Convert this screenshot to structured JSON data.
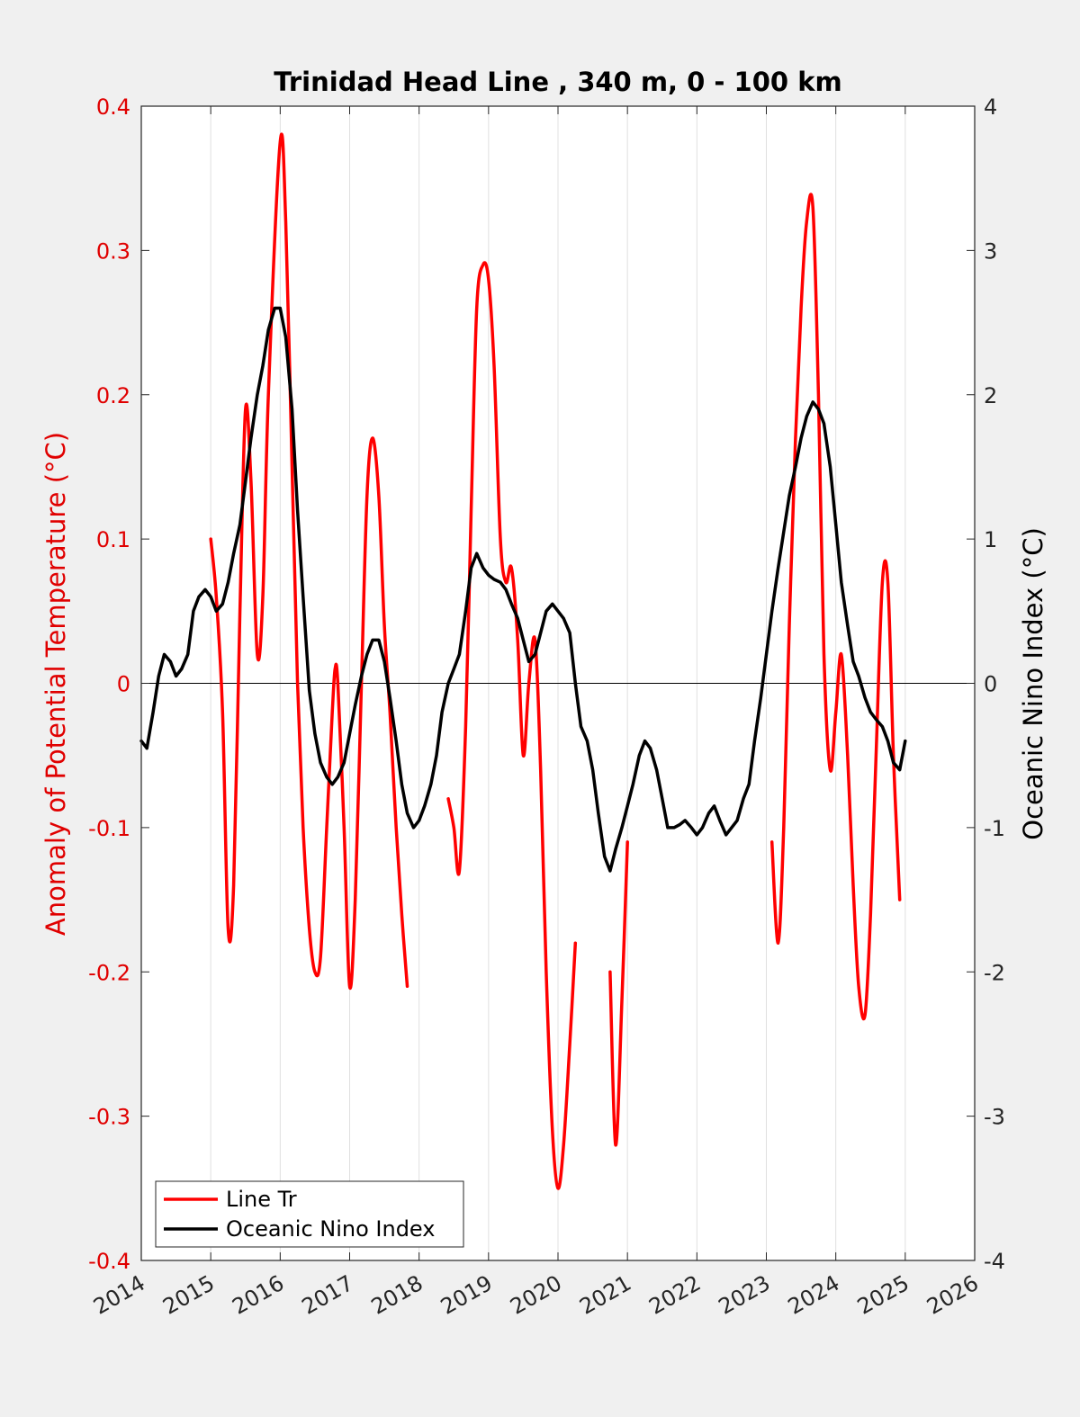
{
  "chart_data": {
    "type": "line",
    "title": "Trinidad Head Line , 340 m, 0 - 100 km",
    "ylabel_left": "Anomaly of Potential Temperature (°C)",
    "ylabel_right": "Oceanic Nino Index (°C)",
    "xlabel": "",
    "xlim": [
      2014,
      2026
    ],
    "ylim_left": [
      -0.4,
      0.4
    ],
    "ylim_right": [
      -4,
      4
    ],
    "xticks": [
      "2014",
      "2015",
      "2016",
      "2017",
      "2018",
      "2019",
      "2020",
      "2021",
      "2022",
      "2023",
      "2024",
      "2025",
      "2026"
    ],
    "yticks_left": [
      "-0.4",
      "-0.3",
      "-0.2",
      "-0.1",
      "0",
      "0.1",
      "0.2",
      "0.3",
      "0.4"
    ],
    "yticks_right": [
      "-4",
      "-3",
      "-2",
      "-1",
      "0",
      "1",
      "2",
      "3",
      "4"
    ],
    "grid": "vertical",
    "zero_line": true,
    "legend_position": "bottom-left",
    "colors": {
      "left_axis": "#e00000",
      "line_tr": "#ff0000",
      "oni": "#000000",
      "grid": "#e0e0e0",
      "background": "#f0f0f0",
      "plot_background": "#ffffff"
    },
    "series": [
      {
        "name": "Line Tr",
        "axis": "left",
        "segments": [
          [
            [
              2015.0,
              0.1
            ],
            [
              2015.08,
              0.06
            ],
            [
              2015.17,
              -0.02
            ],
            [
              2015.25,
              -0.17
            ],
            [
              2015.33,
              -0.14
            ],
            [
              2015.42,
              0.05
            ],
            [
              2015.5,
              0.19
            ],
            [
              2015.58,
              0.14
            ],
            [
              2015.67,
              0.02
            ],
            [
              2015.75,
              0.06
            ],
            [
              2015.83,
              0.2
            ],
            [
              2016.0,
              0.375
            ],
            [
              2016.08,
              0.32
            ],
            [
              2016.17,
              0.15
            ],
            [
              2016.25,
              0.0
            ],
            [
              2016.33,
              -0.1
            ],
            [
              2016.42,
              -0.17
            ],
            [
              2016.5,
              -0.2
            ],
            [
              2016.58,
              -0.19
            ],
            [
              2016.67,
              -0.1
            ],
            [
              2016.75,
              -0.02
            ],
            [
              2016.79,
              0.01
            ],
            [
              2016.83,
              0.0
            ],
            [
              2016.92,
              -0.1
            ],
            [
              2017.0,
              -0.21
            ],
            [
              2017.08,
              -0.15
            ],
            [
              2017.17,
              0.0
            ],
            [
              2017.25,
              0.13
            ],
            [
              2017.33,
              0.17
            ],
            [
              2017.42,
              0.13
            ],
            [
              2017.5,
              0.04
            ],
            [
              2017.58,
              -0.02
            ],
            [
              2017.67,
              -0.1
            ],
            [
              2017.75,
              -0.16
            ],
            [
              2017.83,
              -0.21
            ]
          ],
          [
            [
              2018.42,
              -0.08
            ],
            [
              2018.5,
              -0.1
            ],
            [
              2018.58,
              -0.13
            ],
            [
              2018.67,
              -0.03
            ],
            [
              2018.75,
              0.12
            ],
            [
              2018.83,
              0.26
            ],
            [
              2018.92,
              0.29
            ],
            [
              2019.0,
              0.28
            ],
            [
              2019.08,
              0.22
            ],
            [
              2019.17,
              0.1
            ],
            [
              2019.25,
              0.07
            ],
            [
              2019.33,
              0.08
            ],
            [
              2019.42,
              0.03
            ],
            [
              2019.5,
              -0.05
            ],
            [
              2019.58,
              0.0
            ],
            [
              2019.67,
              0.03
            ],
            [
              2019.75,
              -0.06
            ],
            [
              2019.83,
              -0.2
            ],
            [
              2019.92,
              -0.31
            ],
            [
              2020.0,
              -0.35
            ],
            [
              2020.08,
              -0.32
            ],
            [
              2020.17,
              -0.25
            ],
            [
              2020.25,
              -0.18
            ]
          ],
          [
            [
              2020.75,
              -0.2
            ],
            [
              2020.83,
              -0.32
            ],
            [
              2020.92,
              -0.22
            ],
            [
              2021.0,
              -0.11
            ]
          ],
          [
            [
              2023.08,
              -0.11
            ],
            [
              2023.17,
              -0.18
            ],
            [
              2023.25,
              -0.1
            ],
            [
              2023.33,
              0.04
            ],
            [
              2023.42,
              0.17
            ],
            [
              2023.5,
              0.26
            ],
            [
              2023.58,
              0.32
            ],
            [
              2023.67,
              0.33
            ],
            [
              2023.75,
              0.2
            ],
            [
              2023.83,
              0.02
            ],
            [
              2023.92,
              -0.06
            ],
            [
              2024.0,
              -0.02
            ],
            [
              2024.08,
              0.02
            ],
            [
              2024.17,
              -0.05
            ],
            [
              2024.25,
              -0.14
            ],
            [
              2024.33,
              -0.21
            ],
            [
              2024.42,
              -0.23
            ],
            [
              2024.5,
              -0.16
            ],
            [
              2024.58,
              -0.05
            ],
            [
              2024.67,
              0.07
            ],
            [
              2024.75,
              0.07
            ],
            [
              2024.83,
              -0.05
            ],
            [
              2024.92,
              -0.15
            ]
          ]
        ]
      },
      {
        "name": "Oceanic Nino Index",
        "axis": "right",
        "points": [
          [
            2014.0,
            -0.4
          ],
          [
            2014.08,
            -0.45
          ],
          [
            2014.17,
            -0.2
          ],
          [
            2014.25,
            0.05
          ],
          [
            2014.33,
            0.2
          ],
          [
            2014.42,
            0.15
          ],
          [
            2014.5,
            0.05
          ],
          [
            2014.58,
            0.1
          ],
          [
            2014.67,
            0.2
          ],
          [
            2014.75,
            0.5
          ],
          [
            2014.83,
            0.6
          ],
          [
            2014.92,
            0.65
          ],
          [
            2015.0,
            0.6
          ],
          [
            2015.08,
            0.5
          ],
          [
            2015.17,
            0.55
          ],
          [
            2015.25,
            0.7
          ],
          [
            2015.33,
            0.9
          ],
          [
            2015.42,
            1.1
          ],
          [
            2015.5,
            1.4
          ],
          [
            2015.58,
            1.7
          ],
          [
            2015.67,
            2.0
          ],
          [
            2015.75,
            2.2
          ],
          [
            2015.83,
            2.45
          ],
          [
            2015.92,
            2.6
          ],
          [
            2016.0,
            2.6
          ],
          [
            2016.08,
            2.4
          ],
          [
            2016.17,
            1.9
          ],
          [
            2016.25,
            1.2
          ],
          [
            2016.33,
            0.6
          ],
          [
            2016.42,
            -0.05
          ],
          [
            2016.5,
            -0.35
          ],
          [
            2016.58,
            -0.55
          ],
          [
            2016.67,
            -0.65
          ],
          [
            2016.75,
            -0.7
          ],
          [
            2016.83,
            -0.65
          ],
          [
            2016.92,
            -0.55
          ],
          [
            2017.0,
            -0.35
          ],
          [
            2017.08,
            -0.15
          ],
          [
            2017.17,
            0.05
          ],
          [
            2017.25,
            0.2
          ],
          [
            2017.33,
            0.3
          ],
          [
            2017.42,
            0.3
          ],
          [
            2017.5,
            0.15
          ],
          [
            2017.58,
            -0.1
          ],
          [
            2017.67,
            -0.4
          ],
          [
            2017.75,
            -0.7
          ],
          [
            2017.83,
            -0.9
          ],
          [
            2017.92,
            -1.0
          ],
          [
            2018.0,
            -0.95
          ],
          [
            2018.08,
            -0.85
          ],
          [
            2018.17,
            -0.7
          ],
          [
            2018.25,
            -0.5
          ],
          [
            2018.33,
            -0.2
          ],
          [
            2018.42,
            0.0
          ],
          [
            2018.5,
            0.1
          ],
          [
            2018.58,
            0.2
          ],
          [
            2018.67,
            0.5
          ],
          [
            2018.75,
            0.8
          ],
          [
            2018.83,
            0.9
          ],
          [
            2018.92,
            0.8
          ],
          [
            2019.0,
            0.75
          ],
          [
            2019.08,
            0.72
          ],
          [
            2019.17,
            0.7
          ],
          [
            2019.25,
            0.65
          ],
          [
            2019.33,
            0.55
          ],
          [
            2019.42,
            0.45
          ],
          [
            2019.5,
            0.3
          ],
          [
            2019.58,
            0.15
          ],
          [
            2019.67,
            0.2
          ],
          [
            2019.75,
            0.35
          ],
          [
            2019.83,
            0.5
          ],
          [
            2019.92,
            0.55
          ],
          [
            2020.0,
            0.5
          ],
          [
            2020.08,
            0.45
          ],
          [
            2020.17,
            0.35
          ],
          [
            2020.25,
            0.0
          ],
          [
            2020.33,
            -0.3
          ],
          [
            2020.42,
            -0.4
          ],
          [
            2020.5,
            -0.6
          ],
          [
            2020.58,
            -0.9
          ],
          [
            2020.67,
            -1.2
          ],
          [
            2020.75,
            -1.3
          ],
          [
            2020.83,
            -1.15
          ],
          [
            2020.92,
            -1.0
          ],
          [
            2021.0,
            -0.85
          ],
          [
            2021.08,
            -0.7
          ],
          [
            2021.17,
            -0.5
          ],
          [
            2021.25,
            -0.4
          ],
          [
            2021.33,
            -0.45
          ],
          [
            2021.42,
            -0.6
          ],
          [
            2021.5,
            -0.8
          ],
          [
            2021.58,
            -1.0
          ],
          [
            2021.67,
            -1.0
          ],
          [
            2021.75,
            -0.98
          ],
          [
            2021.83,
            -0.95
          ],
          [
            2021.92,
            -1.0
          ],
          [
            2022.0,
            -1.05
          ],
          [
            2022.08,
            -1.0
          ],
          [
            2022.17,
            -0.9
          ],
          [
            2022.25,
            -0.85
          ],
          [
            2022.33,
            -0.95
          ],
          [
            2022.42,
            -1.05
          ],
          [
            2022.5,
            -1.0
          ],
          [
            2022.58,
            -0.95
          ],
          [
            2022.67,
            -0.8
          ],
          [
            2022.75,
            -0.7
          ],
          [
            2022.83,
            -0.4
          ],
          [
            2022.92,
            -0.1
          ],
          [
            2023.0,
            0.2
          ],
          [
            2023.08,
            0.5
          ],
          [
            2023.17,
            0.8
          ],
          [
            2023.25,
            1.05
          ],
          [
            2023.33,
            1.3
          ],
          [
            2023.42,
            1.5
          ],
          [
            2023.5,
            1.7
          ],
          [
            2023.58,
            1.85
          ],
          [
            2023.67,
            1.95
          ],
          [
            2023.75,
            1.9
          ],
          [
            2023.83,
            1.8
          ],
          [
            2023.92,
            1.5
          ],
          [
            2024.0,
            1.1
          ],
          [
            2024.08,
            0.7
          ],
          [
            2024.17,
            0.4
          ],
          [
            2024.25,
            0.15
          ],
          [
            2024.33,
            0.05
          ],
          [
            2024.42,
            -0.1
          ],
          [
            2024.5,
            -0.2
          ],
          [
            2024.58,
            -0.25
          ],
          [
            2024.67,
            -0.3
          ],
          [
            2024.75,
            -0.4
          ],
          [
            2024.83,
            -0.55
          ],
          [
            2024.92,
            -0.6
          ],
          [
            2025.0,
            -0.4
          ]
        ]
      }
    ]
  }
}
